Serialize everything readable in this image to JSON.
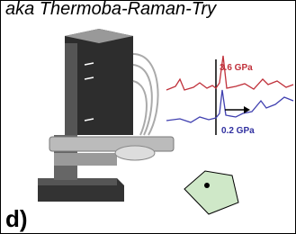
{
  "header": {
    "title": "aka Thermoba-Raman-Try"
  },
  "labels": {
    "high_pressure": "3.6 GPa",
    "low_pressure": "0.2 GPa"
  },
  "panel_label": "d)"
}
